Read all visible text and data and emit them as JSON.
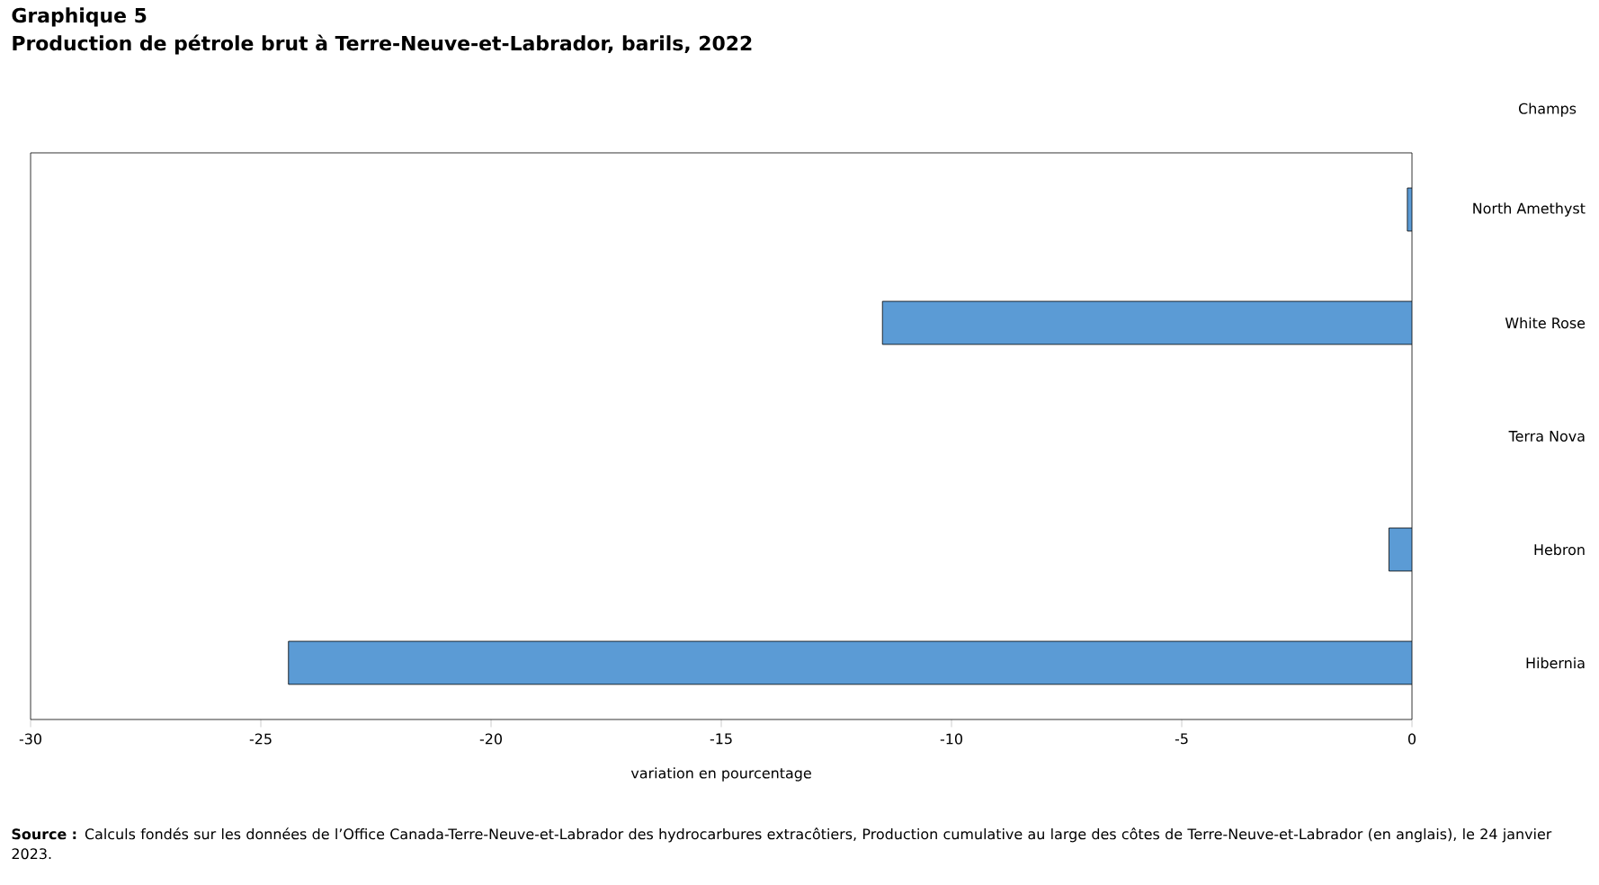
{
  "chart_data": {
    "type": "bar",
    "orientation": "horizontal",
    "title": "Graphique 5",
    "subtitle": "Production de pétrole brut à Terre-Neuve-et-Labrador, barils, 2022",
    "xlabel": "variation en pourcentage",
    "ylabel": "Champs",
    "categories": [
      "North Amethyst",
      "White Rose",
      "Terra Nova",
      "Hebron",
      "Hibernia"
    ],
    "values": [
      -0.1,
      -11.5,
      null,
      -0.5,
      -24.4
    ],
    "color": "#5b9bd5",
    "xlim": [
      -30,
      0
    ],
    "xticks": [
      -30,
      -25,
      -20,
      -15,
      -10,
      -5,
      0
    ],
    "annotations": [
      "**Source :** Calculs fondés sur les données de l’Office Canada-Terre-Neuve-et-Labrador des hydrocarbures extracôtiers, Production cumulative au large des côtes de Terre-Neuve-et-Labrador (en anglais), le 24 janvier 2023."
    ]
  }
}
